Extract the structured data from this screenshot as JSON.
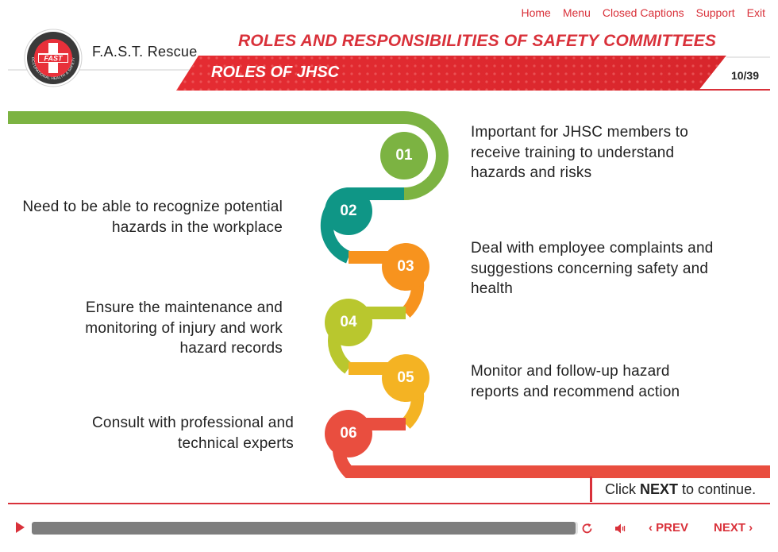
{
  "top_nav": [
    "Home",
    "Menu",
    "Closed Captions",
    "Support",
    "Exit"
  ],
  "header": {
    "brand": "F.A.S.T. Rescue",
    "logo_text": "FAST",
    "logo_ring_text": "OCCUPATIONAL HEALTH & SAFETY",
    "course_title": "ROLES AND RESPONSIBILITIES OF SAFETY COMMITTEES",
    "slide_title": "ROLES OF JHSC",
    "page_indicator": "10/39"
  },
  "steps": [
    {
      "number": "01",
      "text": "Important for JHSC members to receive training to understand hazards and risks",
      "color": "#7cb342"
    },
    {
      "number": "02",
      "text": "Need to be able to recognize potential hazards in the workplace",
      "color": "#0f9686"
    },
    {
      "number": "03",
      "text": "Deal with employee complaints and suggestions concerning safety and health",
      "color": "#f7931e"
    },
    {
      "number": "04",
      "text": "Ensure the maintenance and monitoring of injury and work hazard records",
      "color": "#b9c72e"
    },
    {
      "number": "05",
      "text": "Monitor and follow-up hazard reports and recommend action",
      "color": "#f4b323"
    },
    {
      "number": "06",
      "text": "Consult with professional and technical experts",
      "color": "#e94e3f"
    }
  ],
  "hint": {
    "prefix": "Click ",
    "action": "NEXT",
    "suffix": " to continue."
  },
  "player": {
    "progress_fraction": 0.995,
    "prev_label": "PREV",
    "next_label": "NEXT",
    "icons": [
      "play-icon",
      "replay-icon",
      "volume-icon",
      "chevron-left-icon",
      "chevron-right-icon"
    ]
  },
  "colors": {
    "accent": "#d9313a"
  }
}
